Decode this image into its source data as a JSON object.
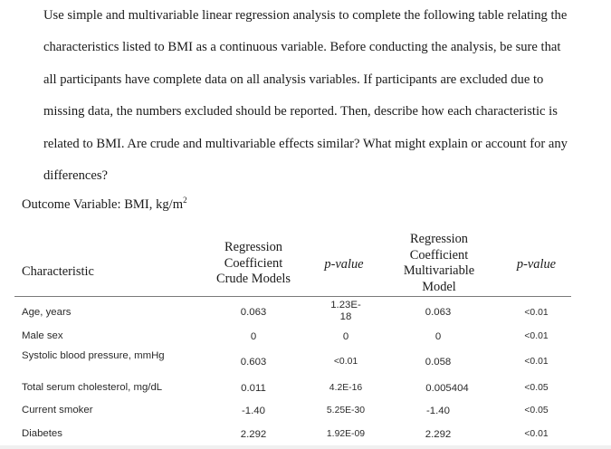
{
  "paragraph_lines": [
    "Use simple and multivariable linear regression analysis to complete the following table relating the",
    "characteristics listed to BMI as a continuous variable. Before conducting the analysis, be sure that",
    "all participants have complete data on all analysis variables. If participants are excluded due to",
    "missing data, the numbers excluded should be reported. Then, describe how each characteristic is",
    "related to BMI. Are crude and multivariable effects similar? What might explain or account for any",
    "differences?"
  ],
  "outcome": {
    "label": "Outcome Variable: BMI, kg/m",
    "superscript": "2"
  },
  "table": {
    "headers": {
      "characteristic": "Characteristic",
      "crude": [
        "Regression",
        "Coefficient",
        "Crude Models"
      ],
      "p_crude": "p-value",
      "multi": [
        "Regression",
        "Coefficient",
        "Multivariable",
        "Model"
      ],
      "p_multi": "p-value"
    },
    "rows": [
      {
        "characteristic": "Age, years",
        "crude": "0.063",
        "p_crude": "1.23E-18",
        "multi": "0.063",
        "p_multi": "<0.01"
      },
      {
        "characteristic": "Male sex",
        "crude": "0",
        "p_crude": "0",
        "multi": "0",
        "p_multi": "<0.01"
      },
      {
        "characteristic": "Systolic blood pressure, mmHg",
        "crude": "0.603",
        "p_crude": "<0.01",
        "multi": "0.058",
        "p_multi": "<0.01"
      },
      {
        "characteristic": "Total serum cholesterol, mg/dL",
        "crude": "0.011",
        "p_crude": "4.2E-16",
        "multi": "0.005404",
        "p_multi": "<0.05"
      },
      {
        "characteristic": "Current smoker",
        "crude": "-1.40",
        "p_crude": "5.25E-30",
        "multi": "-1.40",
        "p_multi": "<0.05"
      },
      {
        "characteristic": "Diabetes",
        "crude": "2.292",
        "p_crude": "1.92E-09",
        "multi": "2.292",
        "p_multi": "<0.01"
      }
    ]
  }
}
